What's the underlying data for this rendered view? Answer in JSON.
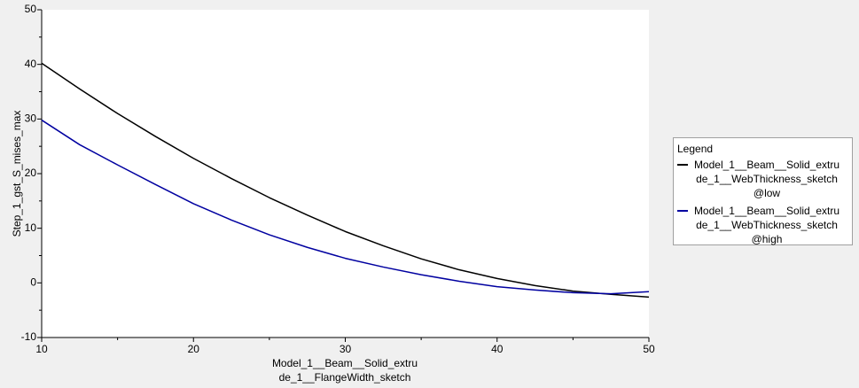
{
  "chart_data": {
    "type": "line",
    "x_label": "Model_1__Beam__Solid_extrude_1__FlangeWidth_sketch",
    "y_label": "Step_1_gst_S_mises_max",
    "legend_title": "Legend",
    "legend_position": "right",
    "x": [
      10,
      12.5,
      15,
      17.5,
      20,
      22.5,
      25,
      27.5,
      30,
      32.5,
      35,
      37.5,
      40,
      42.5,
      45,
      47.5,
      50
    ],
    "series": [
      {
        "name": "Model_1__Beam__Solid_extrude_1__WebThickness_sketch@low",
        "color": "#000000",
        "values": [
          40.2,
          35.5,
          31,
          26.8,
          22.8,
          19.1,
          15.6,
          12.4,
          9.4,
          6.8,
          4.4,
          2.4,
          0.8,
          -0.5,
          -1.5,
          -2.1,
          -2.6
        ]
      },
      {
        "name": "Model_1__Beam__Solid_extrude_1__WebThickness_sketch@high",
        "color": "#0000a0",
        "values": [
          29.8,
          25.3,
          21.6,
          18.0,
          14.5,
          11.5,
          8.8,
          6.5,
          4.5,
          2.9,
          1.5,
          0.3,
          -0.7,
          -1.3,
          -1.8,
          -2.0,
          -1.6
        ]
      }
    ],
    "xlim": [
      10,
      50
    ],
    "xticks": [
      10,
      20,
      30,
      40,
      50
    ],
    "ylim": [
      -10,
      50
    ],
    "yticks": [
      -10,
      0,
      10,
      20,
      30,
      40,
      50
    ]
  }
}
